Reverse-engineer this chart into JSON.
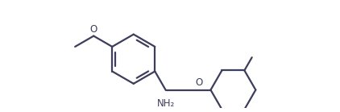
{
  "background_color": "#ffffff",
  "line_color": "#3d3d5c",
  "line_width": 1.6,
  "fig_width": 4.22,
  "fig_height": 1.39,
  "dpi": 100,
  "nh2_label": "NH₂",
  "o_label1": "O",
  "o_label2": "O",
  "font_size": 8.5
}
